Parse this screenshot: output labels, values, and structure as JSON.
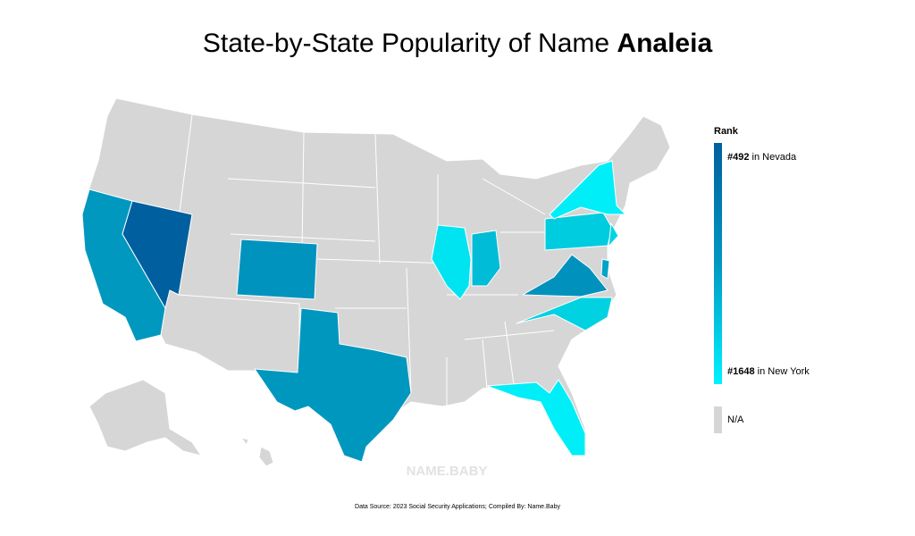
{
  "title": {
    "text": "State-by-State Popularity of Name",
    "name": "Analeia"
  },
  "legend": {
    "title": "Rank",
    "top": {
      "rank": "#492",
      "place": "in Nevada"
    },
    "bottom": {
      "rank": "#1648",
      "place": "in New York"
    },
    "na": "N/A"
  },
  "watermark": "NAME.BABY",
  "footer": "Data Source: 2023 Social Security Applications; Compiled By: Name.Baby"
}
